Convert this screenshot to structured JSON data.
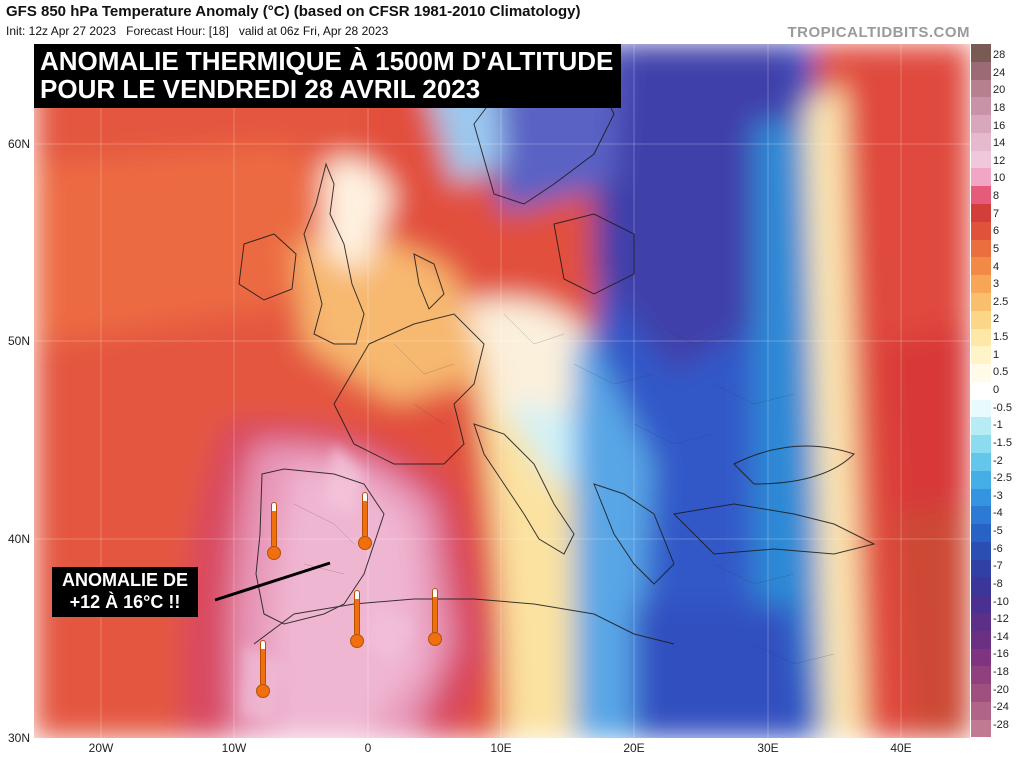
{
  "header": {
    "title": "GFS 850 hPa Temperature Anomaly (°C) (based on CFSR 1981-2010 Climatology)",
    "init": "Init: 12z Apr 27 2023",
    "forecast_hour": "Forecast Hour: [18]",
    "valid": "valid at 06z Fri, Apr 28 2023",
    "brand": "TROPICALTIDBITS.COM"
  },
  "overlay": {
    "title_line1": "ANOMALIE THERMIQUE À 1500M D'ALTITUDE",
    "title_line2": "POUR LE VENDREDI 28 AVRIL 2023",
    "callout_line1": "ANOMALIE DE",
    "callout_line2": "+12 À 16°C !!"
  },
  "axes": {
    "lat_labels": [
      "60N",
      "50N",
      "40N",
      "30N"
    ],
    "lon_labels": [
      "20W",
      "10W",
      "0",
      "10E",
      "20E",
      "30E",
      "40E"
    ]
  },
  "colorbar": {
    "labels": [
      "28",
      "24",
      "20",
      "18",
      "16",
      "14",
      "12",
      "10",
      "8",
      "7",
      "6",
      "5",
      "4",
      "3",
      "2.5",
      "2",
      "1.5",
      "1",
      "0.5",
      "0",
      "-0.5",
      "-1",
      "-1.5",
      "-2",
      "-2.5",
      "-3",
      "-4",
      "-5",
      "-6",
      "-7",
      "-8",
      "-10",
      "-12",
      "-14",
      "-16",
      "-18",
      "-20",
      "-24",
      "-28"
    ],
    "colors": [
      "#7a5a55",
      "#9c6a74",
      "#b6808f",
      "#c893a6",
      "#d8a7bc",
      "#e6b9cf",
      "#f0c8de",
      "#f2a6c6",
      "#e65a7a",
      "#d43e3a",
      "#e0533a",
      "#ea6e3e",
      "#f08a46",
      "#f6a656",
      "#f9bf6c",
      "#fcd688",
      "#fde8a8",
      "#fff3c8",
      "#fffbe8",
      "#ffffff",
      "#e8fafc",
      "#b8ecf4",
      "#8cdcef",
      "#64c6ea",
      "#46aee6",
      "#3494df",
      "#2c7ad4",
      "#2862c4",
      "#2a4eb2",
      "#3040a4",
      "#3a369a",
      "#4a3090",
      "#5c3088",
      "#6c3082",
      "#7e347e",
      "#90407c",
      "#a0507e",
      "#b06486",
      "#c07a92"
    ],
    "colors_note": ""
  },
  "thermometers": [
    {
      "name": "thermometer-portugal-north"
    },
    {
      "name": "thermometer-spain-centre"
    },
    {
      "name": "thermometer-spain-south"
    },
    {
      "name": "thermometer-algeria"
    },
    {
      "name": "thermometer-morocco"
    }
  ]
}
